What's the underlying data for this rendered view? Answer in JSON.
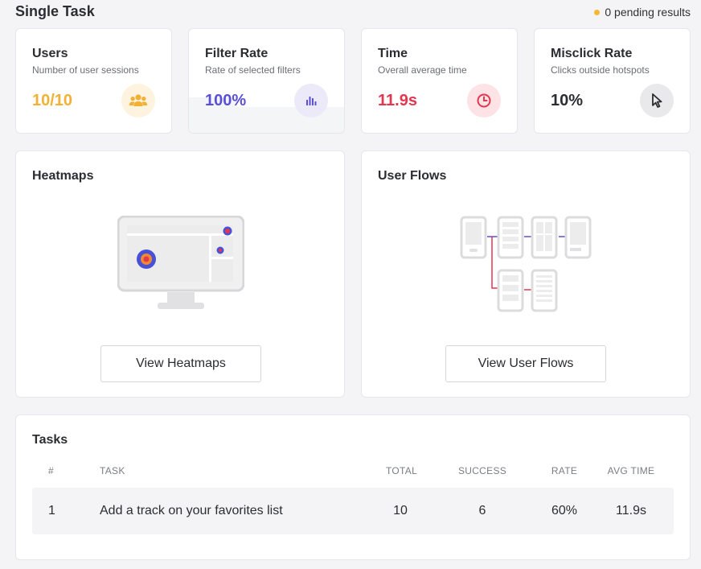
{
  "header": {
    "title": "Single Task",
    "pending": "0 pending results"
  },
  "stats": {
    "users": {
      "title": "Users",
      "subtitle": "Number of user sessions",
      "value": "10/10",
      "color": "#f2b134",
      "icon": "users-icon"
    },
    "filter_rate": {
      "title": "Filter Rate",
      "subtitle": "Rate of selected filters",
      "value": "100%",
      "color": "#5a4fd6",
      "icon": "bar-chart-icon"
    },
    "time": {
      "title": "Time",
      "subtitle": "Overall average time",
      "value": "11.9s",
      "color": "#e3364f",
      "icon": "clock-icon"
    },
    "misclick": {
      "title": "Misclick Rate",
      "subtitle": "Clicks outside hotspots",
      "value": "10%",
      "color": "#2b2d33",
      "icon": "cursor-icon"
    }
  },
  "heatmaps": {
    "title": "Heatmaps",
    "button": "View Heatmaps"
  },
  "user_flows": {
    "title": "User Flows",
    "button": "View User Flows"
  },
  "tasks": {
    "title": "Tasks",
    "columns": [
      "#",
      "TASK",
      "TOTAL",
      "SUCCESS",
      "RATE",
      "AVG TIME"
    ],
    "rows": [
      {
        "num": "1",
        "task": "Add a track on your favorites list",
        "total": "10",
        "success": "6",
        "rate": "60%",
        "avg_time": "11.9s"
      }
    ]
  }
}
